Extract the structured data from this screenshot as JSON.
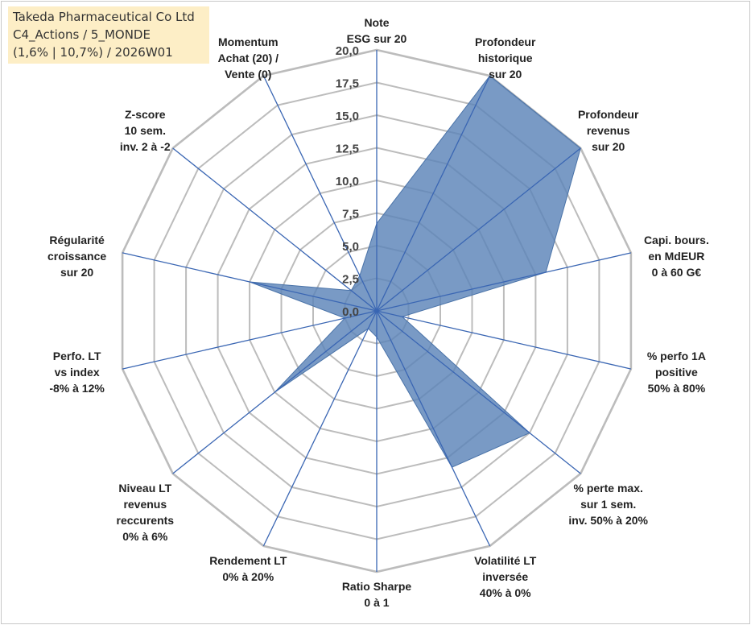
{
  "header": {
    "line1": "Takeda Pharmaceutical Co Ltd",
    "line2": "C4_Actions / 5_MONDE",
    "line3": "(1,6% | 10,7%) / 2026W01"
  },
  "chart_data": {
    "type": "radar",
    "rmin": 0,
    "rmax": 20,
    "ticks": [
      "0,0",
      "2,5",
      "5,0",
      "7,5",
      "10,0",
      "12,5",
      "15,0",
      "17,5",
      "20,0"
    ],
    "grid": true,
    "colors": {
      "fill": "#5b84b8",
      "grid": "#bcbcbc",
      "axis": "#3a66b3"
    },
    "axes": [
      {
        "label": [
          "Note",
          "ESG sur 20"
        ],
        "value": 6.7
      },
      {
        "label": [
          "Profondeur",
          "historique",
          "sur 20"
        ],
        "value": 20.0
      },
      {
        "label": [
          "Profondeur",
          "revenus",
          "sur 20"
        ],
        "value": 20.0
      },
      {
        "label": [
          "Capi. bours.",
          "en MdEUR",
          "0 à 60 G€"
        ],
        "value": 13.3
      },
      {
        "label": [
          "% perfo 1A",
          "positive",
          "50% à 80%"
        ],
        "value": 2.0
      },
      {
        "label": [
          "% perte max.",
          "sur 1 sem.",
          "inv. 50% à 20%"
        ],
        "value": 15.0
      },
      {
        "label": [
          "Volatilité LT",
          "inversée",
          "40% à 0%"
        ],
        "value": 13.3
      },
      {
        "label": [
          "Ratio Sharpe",
          "0 à 1"
        ],
        "value": 2.0
      },
      {
        "label": [
          "Rendement LT",
          "0% à 20%"
        ],
        "value": 1.5
      },
      {
        "label": [
          "Niveau LT",
          "revenus",
          "reccurents",
          "0% à 6%"
        ],
        "value": 10.0
      },
      {
        "label": [
          "Perfo. LT",
          "vs index",
          "-8% à 12%"
        ],
        "value": 2.5
      },
      {
        "label": [
          "Régularité",
          "croissance",
          "sur 20"
        ],
        "value": 10.0
      },
      {
        "label": [
          "Z-score",
          "10 sem.",
          "inv. 2 à -2"
        ],
        "value": 2.5
      },
      {
        "label": [
          "Momentum",
          "Achat (20) /",
          "Vente (0)"
        ],
        "value": 3.0
      }
    ]
  }
}
